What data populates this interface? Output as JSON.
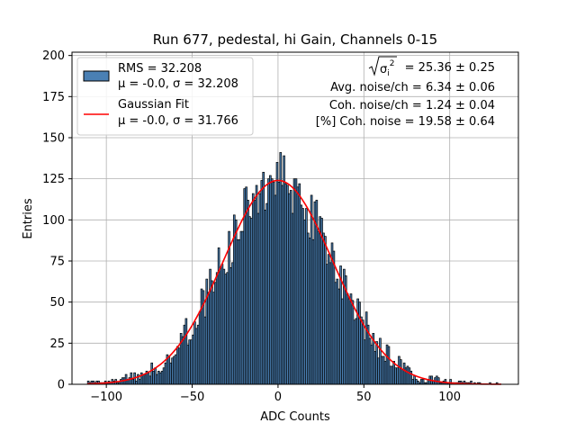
{
  "chart_data": {
    "type": "bar",
    "title": "Run 677, pedestal, hi Gain, Channels 0-15",
    "xlabel": "ADC Counts",
    "ylabel": "Entries",
    "xlim": [
      -120,
      140
    ],
    "ylim": [
      0,
      202
    ],
    "xticks": [
      -100,
      -50,
      0,
      50,
      100
    ],
    "yticks": [
      0,
      25,
      50,
      75,
      100,
      125,
      150,
      175,
      200
    ],
    "grid": true,
    "legend_placement": "top-left",
    "histogram": {
      "bin_width": 1,
      "x_min": -111,
      "x_max": 130,
      "mu": 0.0,
      "sigma": 32.208,
      "peak": 124,
      "color": "#4a80b4",
      "edge_color": "#000000"
    },
    "gaussian_fit": {
      "mu": 0.0,
      "sigma": 31.766,
      "amplitude": 124,
      "color": "#ff0000"
    },
    "legend": [
      {
        "line1": "RMS = 32.208",
        "line2": "μ = -0.0, σ = 32.208",
        "kind": "patch"
      },
      {
        "line1": "Gaussian Fit",
        "line2": "μ = -0.0, σ = 31.766",
        "kind": "line"
      }
    ],
    "annotations": {
      "sigma_i_prefix": "σ",
      "sigma_i_sub": "i",
      "sigma_i_sup": "2",
      "sigma_i_value": " = 25.36 ± 0.25",
      "avg_noise": "Avg. noise/ch = 6.34 ± 0.06",
      "coh_noise": "Coh. noise/ch = 1.24 ± 0.04",
      "pct_coh_noise": "[%] Coh. noise = 19.58 ± 0.64"
    }
  }
}
